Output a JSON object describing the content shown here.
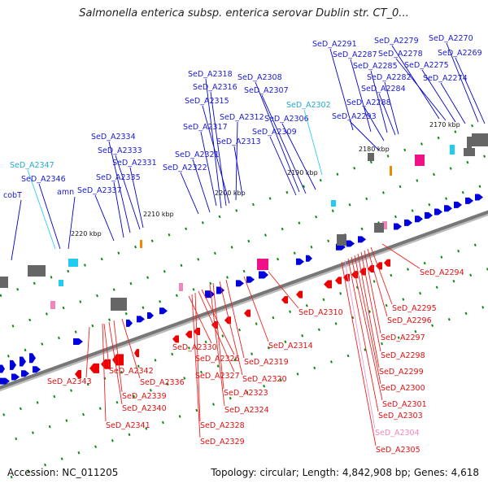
{
  "title": "Salmonella enterica subsp. enterica serovar Dublin str. CT_0...",
  "footer": {
    "accession": "Accession: NC_011205",
    "info": "Topology: circular; Length: 4,842,908 bp; Genes: 4,618"
  },
  "colors": {
    "forward": "#0000dd",
    "reverse": "#ee0000",
    "forward_light": "#22ccee",
    "reverse_light": "#ee88bb",
    "backbone": "#777777",
    "tick": "#118811"
  },
  "scale_labels": [
    "2170 kbp",
    "2180 kbp",
    "2190 kbp",
    "2200 kbp",
    "2210 kbp",
    "2220 kbp"
  ],
  "top_labels": [
    "SeD_A2291",
    "SeD_A2287",
    "SeD_A2285",
    "SeD_A2282",
    "SeD_A2284",
    "SeD_A2288",
    "SeD_A2293",
    "SeD_A2279",
    "SeD_A2278",
    "SeD_A2275",
    "SeD_A2274",
    "SeD_A2270",
    "SeD_A2269",
    "SeD_A2308",
    "SeD_A2307",
    "SeD_A2306",
    "SeD_A2309",
    "SeD_A2302",
    "SeD_A2318",
    "SeD_A2316",
    "SeD_A2315",
    "SeD_A2317",
    "SeD_A2312",
    "SeD_A2313",
    "SeD_A2334",
    "SeD_A2333",
    "SeD_A2331",
    "SeD_A2335",
    "SeD_A2337",
    "SeD_A2321",
    "SeD_A2322",
    "SeD_A2347",
    "SeD_A2346",
    "amn",
    "cobT"
  ],
  "bottom_labels": [
    "SeD_A2294",
    "SeD_A2295",
    "SeD_A2296",
    "SeD_A2297",
    "SeD_A2298",
    "SeD_A2299",
    "SeD_A2300",
    "SeD_A2301",
    "SeD_A2303",
    "SeD_A2304",
    "SeD_A2305",
    "SeD_A2310",
    "SeD_A2314",
    "SeD_A2319",
    "SeD_A2320",
    "SeD_A2323",
    "SeD_A2324",
    "SeD_A2326",
    "SeD_A2327",
    "SeD_A2328",
    "SeD_A2329",
    "SeD_A2330",
    "SeD_A2336",
    "SeD_A2339",
    "SeD_A2340",
    "SeD_A2341",
    "SeD_A2342",
    "SeD_A2343"
  ]
}
